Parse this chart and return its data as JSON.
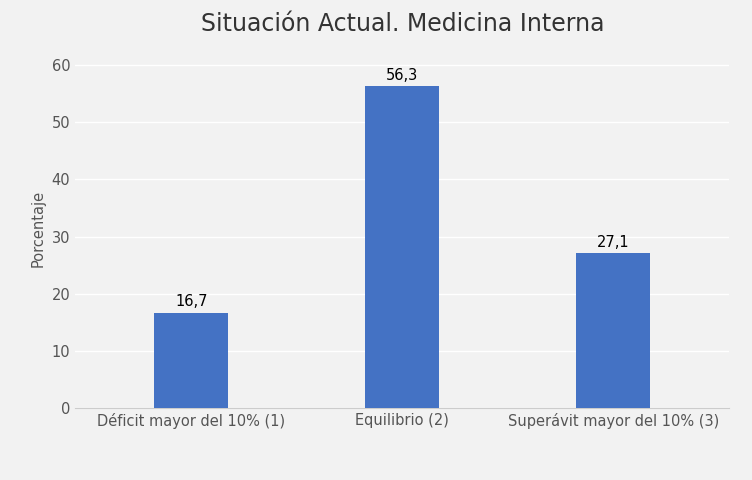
{
  "title": "Situación Actual. Medicina Interna",
  "categories": [
    "Déficit mayor del 10% (1)",
    "Equilibrio (2)",
    "Superávit mayor del 10% (3)"
  ],
  "values": [
    16.7,
    56.3,
    27.1
  ],
  "bar_color": "#4472C4",
  "ylabel": "Porcentaje",
  "ylim": [
    0,
    63
  ],
  "yticks": [
    0,
    10,
    20,
    30,
    40,
    50,
    60
  ],
  "background_color": "#f2f2f2",
  "plot_bg_color": "#f2f2f2",
  "grid_color": "#ffffff",
  "title_fontsize": 17,
  "label_fontsize": 10.5,
  "tick_fontsize": 10.5,
  "annotation_fontsize": 10.5,
  "bar_width": 0.35
}
